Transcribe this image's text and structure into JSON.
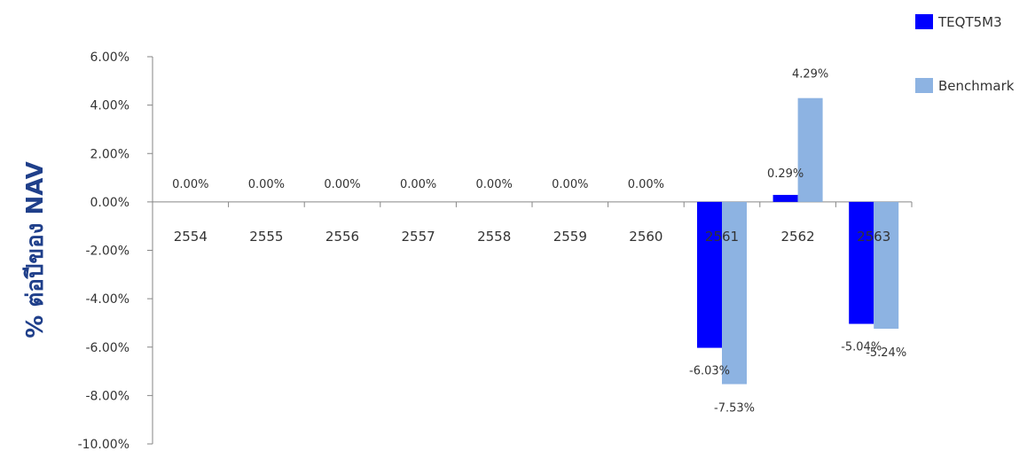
{
  "chart_data": {
    "type": "bar",
    "categories": [
      "2554",
      "2555",
      "2556",
      "2557",
      "2558",
      "2559",
      "2560",
      "2561",
      "2562",
      "2563"
    ],
    "series": [
      {
        "name": "TEQT5M3",
        "color": "#0000ff",
        "values": [
          0.0,
          0.0,
          0.0,
          0.0,
          0.0,
          0.0,
          0.0,
          -6.03,
          0.29,
          -5.04
        ],
        "labels": [
          "0.00%",
          "0.00%",
          "0.00%",
          "0.00%",
          "0.00%",
          "0.00%",
          "0.00%",
          "-6.03%",
          "0.29%",
          "-5.04%"
        ]
      },
      {
        "name": "Benchmark",
        "color": "#8db3e2",
        "values": [
          null,
          null,
          null,
          null,
          null,
          null,
          null,
          -7.53,
          4.29,
          -5.24
        ],
        "labels": [
          "",
          "",
          "",
          "",
          "",
          "",
          "",
          "-7.53%",
          "4.29%",
          "-5.24%"
        ]
      }
    ],
    "ylabel": "% ต่อปีของ NAV",
    "ylim": [
      -10,
      6
    ],
    "yticks": [
      "6.00%",
      "4.00%",
      "2.00%",
      "0.00%",
      "-2.00%",
      "-4.00%",
      "-6.00%",
      "-8.00%",
      "-10.00%"
    ],
    "ytick_values": [
      6,
      4,
      2,
      0,
      -2,
      -4,
      -6,
      -8,
      -10
    ],
    "legend_position": "top-right",
    "grid": false
  }
}
